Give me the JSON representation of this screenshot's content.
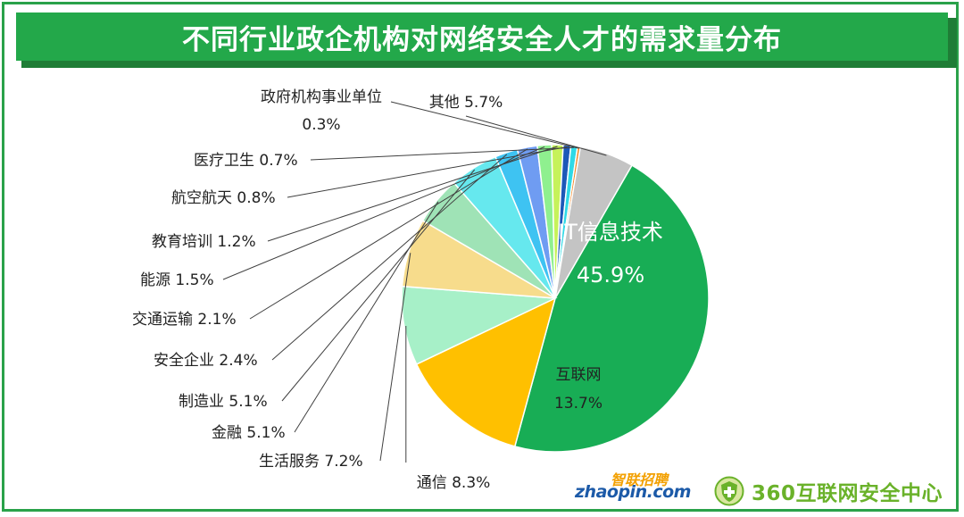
{
  "chart_data": {
    "type": "pie",
    "title": "不同行业政企机构对网络安全人才的需求量分布",
    "slices": [
      {
        "label": "IT信息技术",
        "value": 45.9,
        "value_text": "45.9%",
        "color": "#18ad55",
        "label_inside": true,
        "text_color": "#ffffff"
      },
      {
        "label": "互联网",
        "value": 13.7,
        "value_text": "13.7%",
        "color": "#ffc000",
        "label_inside": true,
        "text_color": "#222222"
      },
      {
        "label": "通信",
        "value": 8.3,
        "value_text": "8.3%",
        "color": "#a7f0c8",
        "label_inside": false
      },
      {
        "label": "生活服务",
        "value": 7.2,
        "value_text": "7.2%",
        "color": "#f7dc8c",
        "label_inside": false
      },
      {
        "label": "金融",
        "value": 5.1,
        "value_text": "5.1%",
        "color": "#9fe3b6",
        "label_inside": false
      },
      {
        "label": "制造业",
        "value": 5.1,
        "value_text": "5.1%",
        "color": "#66e8ee",
        "label_inside": false
      },
      {
        "label": "安全企业",
        "value": 2.4,
        "value_text": "2.4%",
        "color": "#3ec3f2",
        "label_inside": false
      },
      {
        "label": "交通运输",
        "value": 2.1,
        "value_text": "2.1%",
        "color": "#6f9cf2",
        "label_inside": false
      },
      {
        "label": "能源",
        "value": 1.5,
        "value_text": "1.5%",
        "color": "#8ff08f",
        "label_inside": false
      },
      {
        "label": "教育培训",
        "value": 1.2,
        "value_text": "1.2%",
        "color": "#c6f25a",
        "label_inside": false
      },
      {
        "label": "航空航天",
        "value": 0.8,
        "value_text": "0.8%",
        "color": "#1d58b8",
        "label_inside": false
      },
      {
        "label": "医疗卫生",
        "value": 0.7,
        "value_text": "0.7%",
        "color": "#2fd9e6",
        "label_inside": false
      },
      {
        "label": "政府机构事业单位",
        "value": 0.3,
        "value_text": "0.3%",
        "color": "#f08a2a",
        "label_inside": false
      },
      {
        "label": "其他",
        "value": 5.7,
        "value_text": "5.7%",
        "color": "#c4c4c4",
        "label_inside": false
      }
    ]
  },
  "brands": {
    "zhaopin_top": "智联招聘",
    "zhaopin_bottom": "zhaopin.com",
    "org_360": "360互联网安全中心"
  },
  "colors": {
    "title_bar": "#23a84a",
    "leader_line": "#404040"
  }
}
